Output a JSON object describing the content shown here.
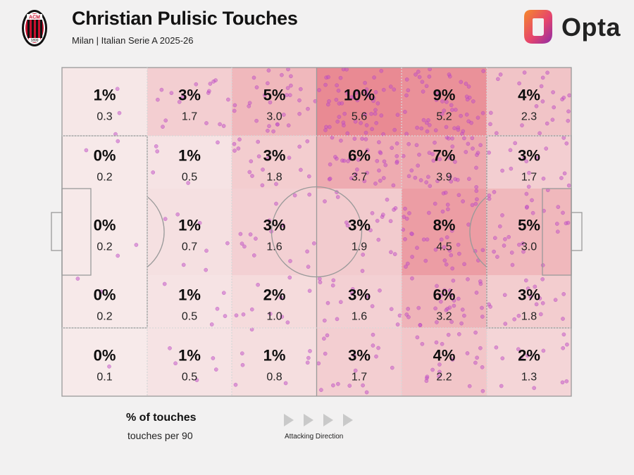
{
  "header": {
    "title": "Christian Pulisic Touches",
    "subtitle": "Milan | Italian Serie A 2025-26",
    "brand": "Opta",
    "crest_text": "ACM",
    "crest_year": "1899"
  },
  "legend": {
    "pct_label": "% of touches",
    "per90_label": "touches per 90",
    "direction_label": "Attacking Direction"
  },
  "colors": {
    "background": "#f2f1f1",
    "pitch_lines": "#9a9a9a",
    "dots": "#c24fc7",
    "heat_high": "#e98a93",
    "opta_orange": "#f26a2b",
    "opta_purple": "#8e2ba8",
    "milan_red": "#c8102e"
  },
  "chart_data": {
    "type": "heatmap",
    "columns": 6,
    "rows": 5,
    "attacking_direction": "left-to-right",
    "cells": [
      [
        {
          "pct": "1%",
          "per90": "0.3"
        },
        {
          "pct": "3%",
          "per90": "1.7"
        },
        {
          "pct": "5%",
          "per90": "3.0"
        },
        {
          "pct": "10%",
          "per90": "5.6"
        },
        {
          "pct": "9%",
          "per90": "5.2"
        },
        {
          "pct": "4%",
          "per90": "2.3"
        }
      ],
      [
        {
          "pct": "0%",
          "per90": "0.2"
        },
        {
          "pct": "1%",
          "per90": "0.5"
        },
        {
          "pct": "3%",
          "per90": "1.8"
        },
        {
          "pct": "6%",
          "per90": "3.7"
        },
        {
          "pct": "7%",
          "per90": "3.9"
        },
        {
          "pct": "3%",
          "per90": "1.7"
        }
      ],
      [
        {
          "pct": "0%",
          "per90": "0.2"
        },
        {
          "pct": "1%",
          "per90": "0.7"
        },
        {
          "pct": "3%",
          "per90": "1.6"
        },
        {
          "pct": "3%",
          "per90": "1.9"
        },
        {
          "pct": "8%",
          "per90": "4.5"
        },
        {
          "pct": "5%",
          "per90": "3.0"
        }
      ],
      [
        {
          "pct": "0%",
          "per90": "0.2"
        },
        {
          "pct": "1%",
          "per90": "0.5"
        },
        {
          "pct": "2%",
          "per90": "1.0"
        },
        {
          "pct": "3%",
          "per90": "1.6"
        },
        {
          "pct": "6%",
          "per90": "3.2"
        },
        {
          "pct": "3%",
          "per90": "1.8"
        }
      ],
      [
        {
          "pct": "0%",
          "per90": "0.1"
        },
        {
          "pct": "1%",
          "per90": "0.5"
        },
        {
          "pct": "1%",
          "per90": "0.8"
        },
        {
          "pct": "3%",
          "per90": "1.7"
        },
        {
          "pct": "4%",
          "per90": "2.2"
        },
        {
          "pct": "2%",
          "per90": "1.3"
        }
      ]
    ]
  }
}
